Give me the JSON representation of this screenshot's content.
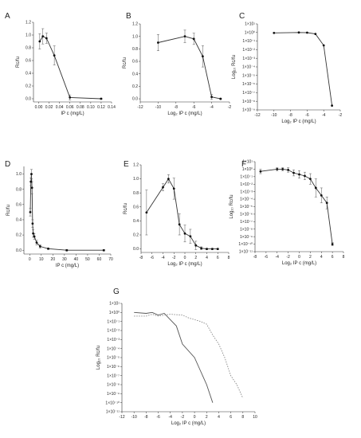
{
  "chart_data": [
    {
      "panel": "A",
      "type": "line",
      "scale": "linear",
      "xlabel": "IP c (mg/L)",
      "ylabel": "Rc/fu",
      "xlim": [
        -0.01,
        0.14
      ],
      "ylim": [
        -0.05,
        1.2
      ],
      "xticks": [
        0.0,
        0.02,
        0.04,
        0.06,
        0.08,
        0.1,
        0.12,
        0.14
      ],
      "xtick_labels": [
        "0.00",
        "0.02",
        "0.04",
        "0.06",
        "0.08",
        "0.10",
        "0.12",
        "0.14"
      ],
      "yticks": [
        0.0,
        0.2,
        0.4,
        0.6,
        0.8,
        1.0,
        1.2
      ],
      "ytick_labels": [
        "0.0",
        "0.2",
        "0.4",
        "0.6",
        "0.8",
        "1.0",
        "1.2"
      ],
      "series": [
        {
          "x": [
            0.002,
            0.008,
            0.015,
            0.03,
            0.06,
            0.12
          ],
          "y": [
            0.9,
            0.98,
            0.95,
            0.68,
            0.02,
            0.0
          ],
          "err": [
            0.12,
            0.12,
            0.08,
            0.15,
            0.04,
            0.01
          ],
          "color": "#333333"
        }
      ]
    },
    {
      "panel": "B",
      "type": "line",
      "scale": "linear",
      "xlabel": "Log₂ IP c (mg/L)",
      "ylabel": "Rc/fu",
      "xlim": [
        -12,
        -2
      ],
      "ylim": [
        -0.05,
        1.2
      ],
      "xticks": [
        -12,
        -10,
        -8,
        -6,
        -4,
        -2
      ],
      "xtick_labels": [
        "-12",
        "-10",
        "-8",
        "-6",
        "-4",
        "-2"
      ],
      "yticks": [
        0.0,
        0.2,
        0.4,
        0.6,
        0.8,
        1.0,
        1.2
      ],
      "ytick_labels": [
        "0.0",
        "0.2",
        "0.4",
        "0.6",
        "0.8",
        "1.0",
        "1.2"
      ],
      "series": [
        {
          "x": [
            -10,
            -7,
            -6,
            -5,
            -4,
            -3
          ],
          "y": [
            0.9,
            1.0,
            0.96,
            0.68,
            0.03,
            0.0
          ],
          "err": [
            0.13,
            0.1,
            0.09,
            0.17,
            0.04,
            0.01
          ],
          "color": "#333333"
        }
      ]
    },
    {
      "panel": "C",
      "type": "line",
      "scale": "log",
      "xlabel": "Log₂ IP c (mg/L)",
      "ylabel": "Log₁₀ Rc/fu",
      "xlim": [
        -12,
        -2
      ],
      "ylim_exp": [
        -9,
        1
      ],
      "xticks": [
        -12,
        -10,
        -8,
        -6,
        -4,
        -2
      ],
      "xtick_labels": [
        "-12",
        "-10",
        "-8",
        "-6",
        "-4",
        "-2"
      ],
      "ytick_labels": [
        "1×10¹",
        "1×10⁰",
        "1×10⁻¹",
        "1×10⁻²",
        "1×10⁻³",
        "1×10⁻⁴",
        "1×10⁻⁵",
        "1×10⁻⁶",
        "1×10⁻⁷",
        "1×10⁻⁸",
        "1×10⁻⁹"
      ],
      "series": [
        {
          "x": [
            -10,
            -7,
            -6,
            -5,
            -4,
            -3
          ],
          "yexp": [
            -0.05,
            0.0,
            -0.02,
            -0.17,
            -1.5,
            -8.5
          ],
          "color": "#333333"
        }
      ]
    },
    {
      "panel": "D",
      "type": "line",
      "scale": "linear",
      "xlabel": "IP c (mg/L)",
      "ylabel": "Rc/fu",
      "xlim": [
        -5,
        70
      ],
      "ylim": [
        -0.05,
        1.1
      ],
      "xticks": [
        0,
        10,
        20,
        30,
        40,
        50,
        60,
        70
      ],
      "xtick_labels": [
        "0",
        "10",
        "20",
        "30",
        "40",
        "50",
        "60",
        "70"
      ],
      "yticks": [
        0.0,
        0.2,
        0.4,
        0.6,
        0.8,
        1.0
      ],
      "ytick_labels": [
        "0.0",
        "0.2",
        "0.4",
        "0.6",
        "0.8",
        "1.0"
      ],
      "series": [
        {
          "x": [
            0.5,
            1,
            1.5,
            2,
            2.5,
            3,
            4,
            6,
            9,
            16,
            32,
            64
          ],
          "y": [
            0.5,
            0.9,
            1.0,
            0.82,
            0.35,
            0.22,
            0.18,
            0.1,
            0.05,
            0.02,
            0.0,
            0.0
          ],
          "err": [
            0.05,
            0.05,
            0.06,
            0.08,
            0.05,
            0.05,
            0.04,
            0.03,
            0.02,
            0.01,
            0.01,
            0.01
          ],
          "color": "#333333"
        }
      ]
    },
    {
      "panel": "E",
      "type": "line",
      "scale": "linear",
      "xlabel": "Log₂ IP c (mg/L)",
      "ylabel": "Rc/fu",
      "xlim": [
        -8,
        8
      ],
      "ylim": [
        -0.05,
        1.2
      ],
      "xticks": [
        -8,
        -6,
        -4,
        -2,
        0,
        2,
        4,
        6,
        8
      ],
      "xtick_labels": [
        "-8",
        "-6",
        "-4",
        "-2",
        "0",
        "2",
        "4",
        "6",
        "8"
      ],
      "yticks": [
        0.0,
        0.2,
        0.4,
        0.6,
        0.8,
        1.0,
        1.2
      ],
      "ytick_labels": [
        "0.0",
        "0.2",
        "0.4",
        "0.6",
        "0.8",
        "1.0",
        "1.2"
      ],
      "series": [
        {
          "x": [
            -7,
            -4,
            -3,
            -2,
            -1,
            0,
            1,
            2,
            3,
            4,
            5,
            6
          ],
          "y": [
            0.52,
            0.88,
            1.0,
            0.86,
            0.35,
            0.22,
            0.18,
            0.05,
            0.01,
            0.0,
            0.0,
            0.0
          ],
          "err": [
            0.32,
            0.05,
            0.06,
            0.15,
            0.15,
            0.12,
            0.1,
            0.06,
            0.02,
            0.01,
            0.01,
            0.01
          ],
          "color": "#333333"
        }
      ]
    },
    {
      "panel": "F",
      "type": "line",
      "scale": "log",
      "xlabel": "Log₂ IP c (mg/L)",
      "ylabel": "Log₁₀ Rc/fu",
      "xlim": [
        -8,
        8
      ],
      "ylim_exp": [
        -11,
        1
      ],
      "xticks": [
        -8,
        -6,
        -4,
        -2,
        0,
        2,
        4,
        6,
        8
      ],
      "xtick_labels": [
        "-8",
        "-6",
        "-4",
        "-2",
        "0",
        "2",
        "4",
        "6",
        "8"
      ],
      "ytick_labels": [
        "1×10¹",
        "1×10⁰",
        "1×10⁻¹",
        "1×10⁻²",
        "1×10⁻³",
        "1×10⁻⁴",
        "1×10⁻⁵",
        "1×10⁻⁶",
        "1×10⁻⁷",
        "1×10⁻⁸",
        "1×10⁻⁹",
        "1×10⁻¹⁰",
        "1×10⁻¹¹"
      ],
      "series": [
        {
          "x": [
            -7,
            -4,
            -3,
            -2,
            -1,
            0,
            1,
            2,
            3,
            4,
            5,
            6
          ],
          "yexp": [
            -0.3,
            0.0,
            0.0,
            -0.1,
            -0.5,
            -0.7,
            -0.9,
            -1.3,
            -2.5,
            -3.5,
            -4.5,
            -10.0
          ],
          "err": [
            0.3,
            0.2,
            0.2,
            0.3,
            0.4,
            0.5,
            0.5,
            0.7,
            1.2,
            1.0,
            0.8,
            0.2
          ],
          "color": "#333333"
        }
      ]
    },
    {
      "panel": "G",
      "type": "line",
      "scale": "log",
      "xlabel": "Log₂ IP c (mg/L)",
      "ylabel": "Log₁₀ Rc/fu",
      "xlim": [
        -12,
        10
      ],
      "ylim_exp": [
        -11,
        1
      ],
      "xticks": [
        -12,
        -10,
        -8,
        -6,
        -4,
        -2,
        0,
        2,
        4,
        6,
        8,
        10
      ],
      "xtick_labels": [
        "-12",
        "-10",
        "-8",
        "-6",
        "-4",
        "-2",
        "0",
        "2",
        "4",
        "6",
        "8",
        "10"
      ],
      "ytick_labels": [
        "1×10¹",
        "1×10⁰",
        "1×10⁻¹",
        "1×10⁻²",
        "1×10⁻³",
        "1×10⁻⁴",
        "1×10⁻⁵",
        "1×10⁻⁶",
        "1×10⁻⁷",
        "1×10⁻⁸",
        "1×10⁻⁹",
        "1×10⁻¹⁰",
        "1×10⁻¹¹"
      ],
      "series": [
        {
          "style": "solid",
          "color": "#555555",
          "x": [
            -10,
            -8,
            -7,
            -6,
            -5,
            -4,
            -3,
            -2,
            0,
            1,
            2,
            3
          ],
          "yexp": [
            0.0,
            -0.1,
            0.0,
            -0.3,
            -0.1,
            -0.8,
            -1.5,
            -3.5,
            -5.0,
            -6.5,
            -8.0,
            -10.0
          ]
        },
        {
          "style": "dotted",
          "color": "#888888",
          "x": [
            -10,
            -8,
            -7,
            -6,
            -4,
            -2,
            -1,
            0,
            1,
            2,
            3,
            4,
            5,
            6,
            7,
            8
          ],
          "yexp": [
            -0.4,
            -0.4,
            -0.2,
            -0.4,
            -0.2,
            -0.3,
            -0.6,
            -0.8,
            -1.0,
            -1.3,
            -2.5,
            -3.5,
            -5.0,
            -7.0,
            -8.0,
            -9.5
          ]
        }
      ]
    }
  ]
}
